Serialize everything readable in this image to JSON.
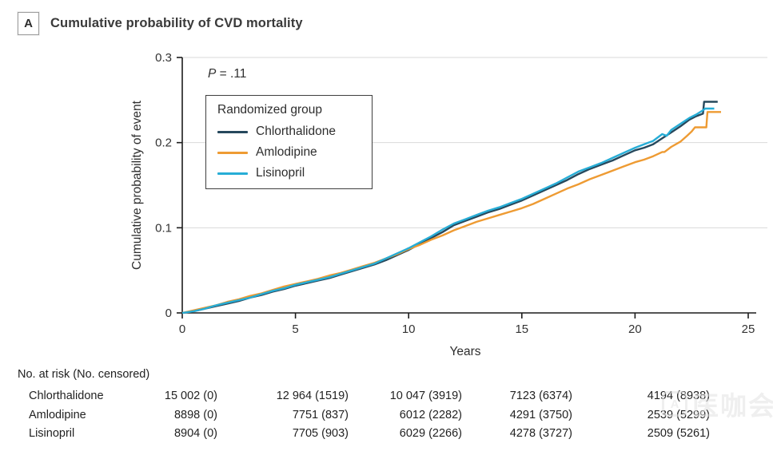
{
  "panel": {
    "label": "A",
    "title": "Cumulative probability of CVD mortality"
  },
  "p_value": {
    "symbol": "P",
    "rest": " = .11"
  },
  "legend": {
    "title": "Randomized group",
    "entries": [
      {
        "label": "Chlorthalidone",
        "color": "#26485c"
      },
      {
        "label": "Amlodipine",
        "color": "#ee9b33"
      },
      {
        "label": "Lisinopril",
        "color": "#27add6"
      }
    ]
  },
  "chart_data": {
    "type": "line",
    "title": "Cumulative probability of CVD mortality",
    "xlabel": "Years",
    "ylabel": "Cumulative probability of event",
    "xlim": [
      0,
      25
    ],
    "ylim": [
      0,
      0.3
    ],
    "xtick_values": [
      0,
      5,
      10,
      15,
      20,
      25
    ],
    "xtick_labels": [
      "0",
      "5",
      "10",
      "15",
      "20",
      "25"
    ],
    "ytick_values": [
      0,
      0.1,
      0.2,
      0.3
    ],
    "ytick_labels": [
      "0",
      "0.1",
      "0.2",
      "0.3"
    ],
    "gridline_values": [
      0.1,
      0.2,
      0.3
    ],
    "grid": "horizontal only",
    "legend_position": "upper left box",
    "p_value": "P = .11",
    "series": [
      {
        "name": "Chlorthalidone",
        "color": "#26485c",
        "points": [
          [
            0,
            0
          ],
          [
            0.5,
            0.002
          ],
          [
            1,
            0.005
          ],
          [
            1.5,
            0.008
          ],
          [
            2,
            0.011
          ],
          [
            2.5,
            0.014
          ],
          [
            3,
            0.018
          ],
          [
            3.5,
            0.021
          ],
          [
            4,
            0.025
          ],
          [
            4.5,
            0.028
          ],
          [
            5,
            0.032
          ],
          [
            5.5,
            0.035
          ],
          [
            6,
            0.038
          ],
          [
            6.5,
            0.041
          ],
          [
            7,
            0.045
          ],
          [
            7.5,
            0.049
          ],
          [
            8,
            0.053
          ],
          [
            8.5,
            0.057
          ],
          [
            9,
            0.062
          ],
          [
            9.5,
            0.068
          ],
          [
            10,
            0.074
          ],
          [
            10.5,
            0.081
          ],
          [
            11,
            0.088
          ],
          [
            11.5,
            0.095
          ],
          [
            12,
            0.103
          ],
          [
            12.5,
            0.108
          ],
          [
            13,
            0.113
          ],
          [
            13.5,
            0.118
          ],
          [
            14,
            0.122
          ],
          [
            14.5,
            0.127
          ],
          [
            15,
            0.132
          ],
          [
            15.5,
            0.138
          ],
          [
            16,
            0.144
          ],
          [
            16.5,
            0.15
          ],
          [
            17,
            0.156
          ],
          [
            17.5,
            0.163
          ],
          [
            18,
            0.169
          ],
          [
            18.5,
            0.174
          ],
          [
            19,
            0.179
          ],
          [
            19.5,
            0.185
          ],
          [
            20,
            0.191
          ],
          [
            20.4,
            0.194
          ],
          [
            20.8,
            0.198
          ],
          [
            21.2,
            0.205
          ],
          [
            21.6,
            0.212
          ],
          [
            22,
            0.219
          ],
          [
            22.4,
            0.227
          ],
          [
            22.7,
            0.231
          ],
          [
            23,
            0.234
          ],
          [
            23.05,
            0.248
          ],
          [
            23.65,
            0.248
          ]
        ]
      },
      {
        "name": "Amlodipine",
        "color": "#ee9b33",
        "points": [
          [
            0,
            0
          ],
          [
            0.5,
            0.003
          ],
          [
            1,
            0.006
          ],
          [
            1.5,
            0.009
          ],
          [
            2,
            0.013
          ],
          [
            2.5,
            0.016
          ],
          [
            3,
            0.02
          ],
          [
            3.5,
            0.023
          ],
          [
            4,
            0.027
          ],
          [
            4.5,
            0.031
          ],
          [
            5,
            0.034
          ],
          [
            5.5,
            0.037
          ],
          [
            6,
            0.04
          ],
          [
            6.5,
            0.044
          ],
          [
            7,
            0.047
          ],
          [
            7.5,
            0.051
          ],
          [
            8,
            0.055
          ],
          [
            8.5,
            0.059
          ],
          [
            9,
            0.064
          ],
          [
            9.5,
            0.069
          ],
          [
            10,
            0.075
          ],
          [
            10.5,
            0.08
          ],
          [
            11,
            0.086
          ],
          [
            11.5,
            0.091
          ],
          [
            12,
            0.097
          ],
          [
            12.5,
            0.102
          ],
          [
            13,
            0.107
          ],
          [
            13.5,
            0.111
          ],
          [
            14,
            0.115
          ],
          [
            14.5,
            0.119
          ],
          [
            15,
            0.123
          ],
          [
            15.5,
            0.128
          ],
          [
            16,
            0.134
          ],
          [
            16.5,
            0.14
          ],
          [
            17,
            0.146
          ],
          [
            17.5,
            0.151
          ],
          [
            18,
            0.157
          ],
          [
            18.5,
            0.162
          ],
          [
            19,
            0.167
          ],
          [
            19.5,
            0.172
          ],
          [
            20,
            0.177
          ],
          [
            20.4,
            0.18
          ],
          [
            20.8,
            0.184
          ],
          [
            21.2,
            0.189
          ],
          [
            21.3,
            0.189
          ],
          [
            21.6,
            0.195
          ],
          [
            22,
            0.201
          ],
          [
            22.3,
            0.208
          ],
          [
            22.5,
            0.213
          ],
          [
            22.65,
            0.218
          ],
          [
            23.15,
            0.218
          ],
          [
            23.2,
            0.236
          ],
          [
            23.8,
            0.236
          ]
        ]
      },
      {
        "name": "Lisinopril",
        "color": "#27add6",
        "points": [
          [
            0,
            0
          ],
          [
            0.5,
            0.002
          ],
          [
            1,
            0.005
          ],
          [
            1.5,
            0.009
          ],
          [
            2,
            0.012
          ],
          [
            2.5,
            0.015
          ],
          [
            3,
            0.018
          ],
          [
            3.5,
            0.022
          ],
          [
            4,
            0.026
          ],
          [
            4.5,
            0.029
          ],
          [
            5,
            0.033
          ],
          [
            5.5,
            0.036
          ],
          [
            6,
            0.039
          ],
          [
            6.5,
            0.042
          ],
          [
            7,
            0.046
          ],
          [
            7.5,
            0.05
          ],
          [
            8,
            0.054
          ],
          [
            8.5,
            0.058
          ],
          [
            9,
            0.064
          ],
          [
            9.5,
            0.07
          ],
          [
            10,
            0.076
          ],
          [
            10.5,
            0.083
          ],
          [
            11,
            0.09
          ],
          [
            11.5,
            0.098
          ],
          [
            12,
            0.105
          ],
          [
            12.5,
            0.11
          ],
          [
            13,
            0.115
          ],
          [
            13.5,
            0.12
          ],
          [
            14,
            0.124
          ],
          [
            14.5,
            0.129
          ],
          [
            15,
            0.134
          ],
          [
            15.5,
            0.14
          ],
          [
            16,
            0.146
          ],
          [
            16.5,
            0.152
          ],
          [
            17,
            0.159
          ],
          [
            17.5,
            0.166
          ],
          [
            18,
            0.171
          ],
          [
            18.5,
            0.176
          ],
          [
            19,
            0.182
          ],
          [
            19.5,
            0.188
          ],
          [
            20,
            0.194
          ],
          [
            20.4,
            0.198
          ],
          [
            20.8,
            0.202
          ],
          [
            21.2,
            0.21
          ],
          [
            21.4,
            0.208
          ],
          [
            21.6,
            0.215
          ],
          [
            22,
            0.222
          ],
          [
            22.4,
            0.229
          ],
          [
            22.7,
            0.233
          ],
          [
            23,
            0.238
          ],
          [
            23.1,
            0.24
          ],
          [
            23.5,
            0.24
          ]
        ]
      }
    ]
  },
  "risk_table": {
    "header": "No. at risk (No. censored)",
    "rows": [
      {
        "label": "Chlorthalidone",
        "values": [
          "15 002 (0)",
          "12 964 (1519)",
          "10 047 (3919)",
          "7123 (6374)",
          "4194 (8938)"
        ]
      },
      {
        "label": "Amlodipine",
        "values": [
          "8898 (0)",
          "7751 (837)",
          "6012 (2282)",
          "4291 (3750)",
          "2539 (5299)"
        ]
      },
      {
        "label": "Lisinopril",
        "values": [
          "8904 (0)",
          "7705 (903)",
          "6029 (2266)",
          "4278 (3727)",
          "2509 (5261)"
        ]
      }
    ]
  },
  "watermark": {
    "logo_glyph": "A",
    "text": "医咖会"
  },
  "colors": {
    "axis": "#1c1c1c",
    "grid": "#d9d9d9",
    "tick_text": "#333333",
    "title_text": "#3a3a3a"
  }
}
